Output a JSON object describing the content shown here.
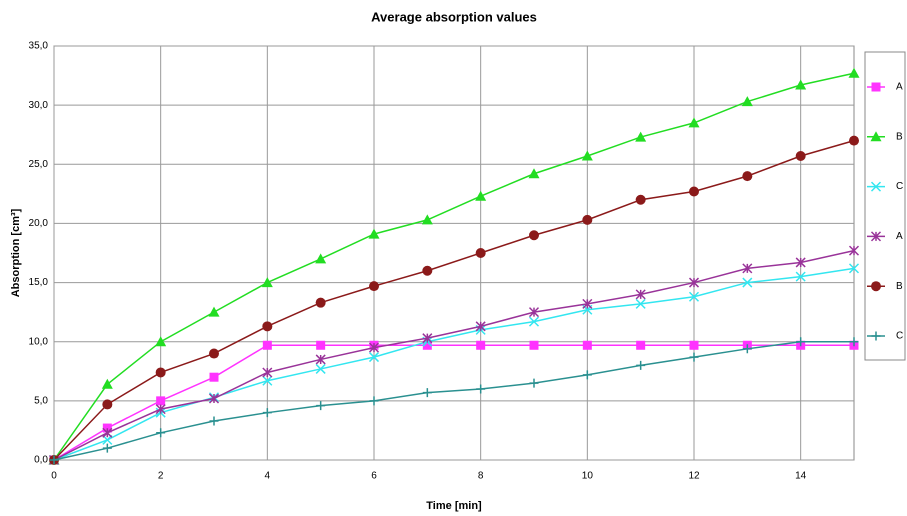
{
  "chart_data": {
    "type": "line",
    "title": "Average absorption values",
    "x_label": "Time [min]",
    "y_label": "Absorption [cm³]",
    "x": [
      0,
      1,
      2,
      3,
      4,
      5,
      6,
      7,
      8,
      9,
      10,
      11,
      12,
      13,
      14,
      15
    ],
    "xlim": [
      0,
      15
    ],
    "xticks": [
      0,
      2,
      4,
      6,
      8,
      10,
      12,
      14
    ],
    "ylim": [
      0,
      35
    ],
    "yticks": [
      {
        "value": 0,
        "label": "0,0"
      },
      {
        "value": 5,
        "label": "5,0"
      },
      {
        "value": 10,
        "label": "10,0"
      },
      {
        "value": 15,
        "label": "15,0"
      },
      {
        "value": 20,
        "label": "20,0"
      },
      {
        "value": 25,
        "label": "25,0"
      },
      {
        "value": 30,
        "label": "30,0"
      },
      {
        "value": 35,
        "label": "35,0"
      }
    ],
    "grid": true,
    "legend": "right",
    "series": [
      {
        "name": "A",
        "color": "#ff33ff",
        "marker": "square",
        "values": [
          0,
          2.7,
          5.0,
          7.0,
          9.7,
          9.7,
          9.7,
          9.7,
          9.7,
          9.7,
          9.7,
          9.7,
          9.7,
          9.7,
          9.7,
          9.7
        ]
      },
      {
        "name": "B",
        "color": "#22dd22",
        "marker": "triangle",
        "values": [
          0,
          6.4,
          10.0,
          12.5,
          15.0,
          17.0,
          19.1,
          20.3,
          22.3,
          24.2,
          25.7,
          27.3,
          28.5,
          30.3,
          31.7,
          32.7
        ]
      },
      {
        "name": "C",
        "color": "#33e6f0",
        "marker": "x",
        "values": [
          0,
          1.7,
          4.0,
          5.3,
          6.7,
          7.7,
          8.7,
          10.0,
          11.0,
          11.7,
          12.7,
          13.2,
          13.8,
          15.0,
          15.5,
          16.2
        ]
      },
      {
        "name": "A",
        "color": "#993399",
        "marker": "star",
        "values": [
          0,
          2.3,
          4.3,
          5.2,
          7.4,
          8.5,
          9.5,
          10.3,
          11.3,
          12.5,
          13.2,
          14.0,
          15.0,
          16.2,
          16.7,
          17.7
        ]
      },
      {
        "name": "B",
        "color": "#8b1a1a",
        "marker": "circle",
        "values": [
          0,
          4.7,
          7.4,
          9.0,
          11.3,
          13.3,
          14.7,
          16.0,
          17.5,
          19.0,
          20.3,
          22.0,
          22.7,
          24.0,
          25.7,
          27.0
        ]
      },
      {
        "name": "C",
        "color": "#2a9090",
        "marker": "plus",
        "values": [
          0,
          1.0,
          2.3,
          3.3,
          4.0,
          4.6,
          5.0,
          5.7,
          6.0,
          6.5,
          7.2,
          8.0,
          8.7,
          9.4,
          10.0,
          10.0
        ]
      }
    ]
  }
}
